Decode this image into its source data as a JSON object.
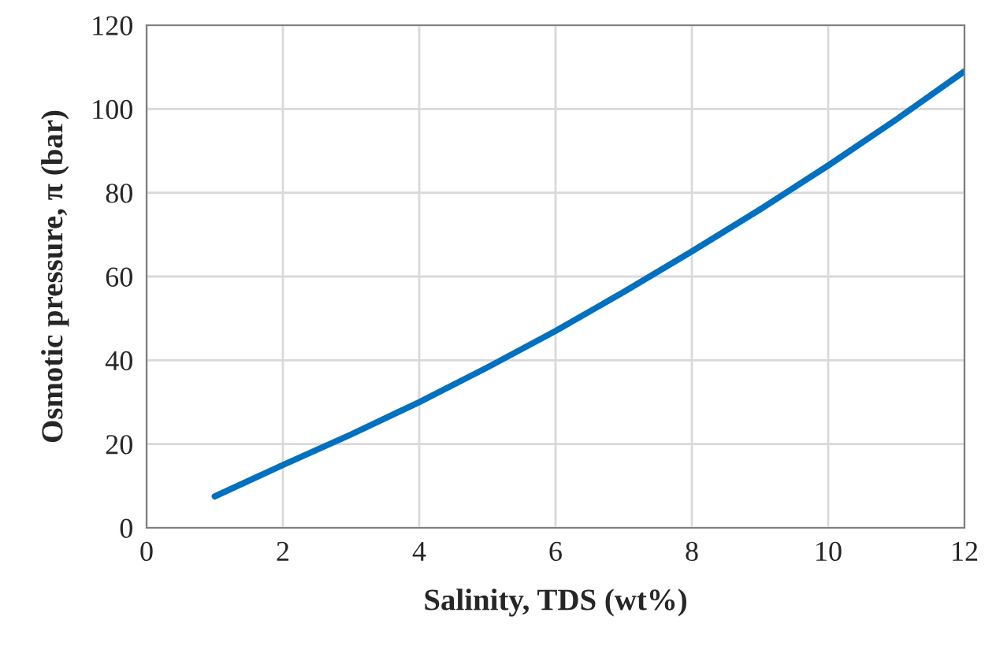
{
  "chart_data": {
    "type": "line",
    "xlabel": "Salinity, TDS (wt%)",
    "ylabel": "Osmotic pressure, π (bar)",
    "x": [
      1,
      2,
      3,
      4,
      5,
      6,
      7,
      8,
      9,
      10,
      11,
      12
    ],
    "series": [
      {
        "color": "#0070c0",
        "values": [
          7.5,
          15,
          22.3,
          30,
          38.3,
          47,
          56.3,
          66,
          76,
          86.5,
          97.5,
          109
        ]
      }
    ],
    "xlim": [
      0,
      12
    ],
    "xticks": [
      0,
      2,
      4,
      6,
      8,
      10,
      12
    ],
    "ylim": [
      0,
      120
    ],
    "yticks": [
      0,
      20,
      40,
      60,
      80,
      100,
      120
    ],
    "grid": true,
    "legend": false,
    "marker": "none",
    "line_style": "solid"
  }
}
